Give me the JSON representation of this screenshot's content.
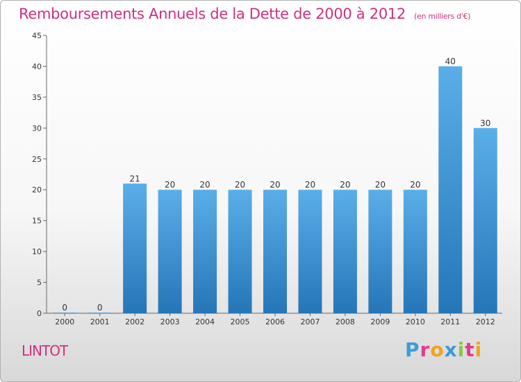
{
  "title": "Remboursements Annuels de la Dette de 2000 à 2012",
  "subtitle": "(en milliers d'€)",
  "commune": "LINTOT",
  "logo": {
    "letters": [
      "P",
      "r",
      "o",
      "x",
      "i",
      "t",
      "i"
    ]
  },
  "colors": {
    "title": "#d0307f",
    "bar_top": "#5aaee8",
    "bar_bottom": "#2576b8"
  },
  "chart_data": {
    "type": "bar",
    "title": "Remboursements Annuels de la Dette de 2000 à 2012",
    "subtitle": "(en milliers d'€)",
    "categories": [
      "2000",
      "2001",
      "2002",
      "2003",
      "2004",
      "2005",
      "2006",
      "2007",
      "2008",
      "2009",
      "2010",
      "2011",
      "2012"
    ],
    "values": [
      0,
      0,
      21,
      20,
      20,
      20,
      20,
      20,
      20,
      20,
      20,
      40,
      30
    ],
    "ylim": [
      0,
      45
    ],
    "yticks": [
      0,
      5,
      10,
      15,
      20,
      25,
      30,
      35,
      40,
      45
    ],
    "grid": false,
    "data_labels": true
  }
}
